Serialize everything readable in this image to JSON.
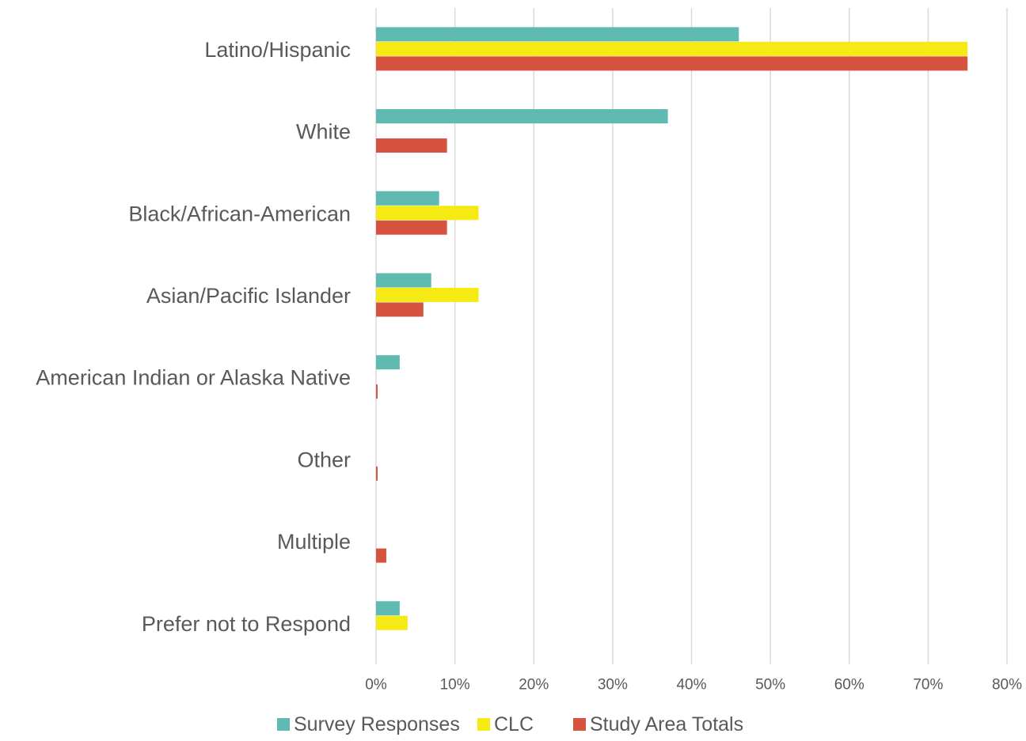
{
  "chart_data": {
    "type": "bar",
    "orientation": "horizontal",
    "categories": [
      "Latino/Hispanic",
      "White",
      "Black/African-American",
      "Asian/Pacific Islander",
      "American Indian or Alaska Native",
      "Other",
      "Multiple",
      "Prefer not to Respond"
    ],
    "series": [
      {
        "name": "Survey Responses",
        "color": "#5fbab2",
        "values": [
          46,
          37,
          8,
          7,
          3,
          0,
          0,
          3
        ]
      },
      {
        "name": "CLC",
        "color": "#f5ea14",
        "values": [
          75,
          0,
          13,
          13,
          0,
          0,
          0,
          4
        ]
      },
      {
        "name": "Study Area Totals",
        "color": "#d6533f",
        "values": [
          75,
          9,
          9,
          6,
          0.2,
          0.2,
          1.3,
          0
        ]
      }
    ],
    "xlim": [
      0,
      80
    ],
    "xticks": [
      "0%",
      "10%",
      "20%",
      "30%",
      "40%",
      "50%",
      "60%",
      "70%",
      "80%"
    ],
    "grid": true,
    "legend_position": "bottom",
    "title": "",
    "xlabel": "",
    "ylabel": ""
  }
}
